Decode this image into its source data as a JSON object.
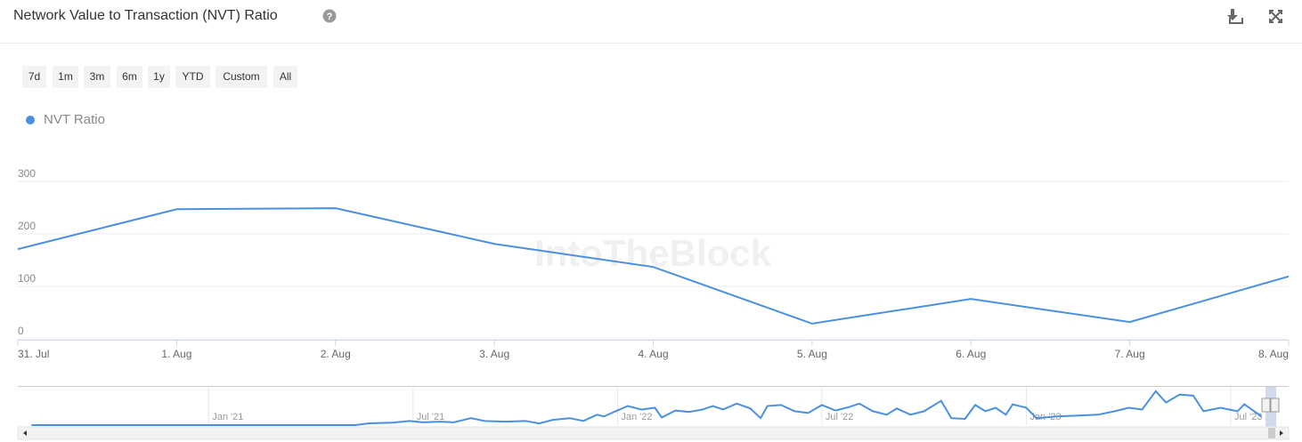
{
  "header": {
    "title": "Network Value to Transaction (NVT) Ratio"
  },
  "range_buttons": [
    "7d",
    "1m",
    "3m",
    "6m",
    "1y",
    "YTD",
    "Custom",
    "All"
  ],
  "watermark": "IntoTheBlock",
  "chart_data": [
    {
      "type": "line",
      "categories": [
        "31. Jul",
        "1. Aug",
        "2. Aug",
        "3. Aug",
        "4. Aug",
        "5. Aug",
        "6. Aug",
        "7. Aug",
        "8. Aug"
      ],
      "series": [
        {
          "name": "NVT Ratio",
          "color": "#4a90e2",
          "values": [
            171,
            247,
            249,
            181,
            137,
            29,
            76,
            32,
            119
          ]
        }
      ],
      "ylim": [
        0,
        300
      ],
      "yticks": [
        0,
        100,
        200,
        300
      ],
      "grid": true
    },
    {
      "type": "line",
      "x": [
        -5.2,
        4.3,
        4.7,
        5.4,
        5.9,
        6.3,
        6.8,
        7.2,
        7.7,
        8.1,
        8.7,
        9.3,
        9.7,
        10.1,
        10.6,
        11,
        11.4,
        11.6,
        11.9,
        12.3,
        12.7,
        13.1,
        13.3,
        13.7,
        14.1,
        14.5,
        14.8,
        15.1,
        15.5,
        15.9,
        16.2,
        16.4,
        16.8,
        17.2,
        17.6,
        18,
        18.4,
        18.8,
        19.1,
        19.5,
        19.9,
        20.2,
        20.6,
        21,
        21.5,
        21.8,
        22.2,
        22.5,
        22.8,
        23.1,
        23.4,
        23.6,
        24,
        24.3,
        24.9,
        25.6,
        26.1,
        26.6,
        27,
        27.4,
        27.8,
        28.1,
        28.5,
        28.9,
        29.2,
        29.7,
        30.2,
        30.4,
        30.9
      ],
      "series": [
        {
          "color": "#4a90e2",
          "values": [
            0,
            0,
            5,
            7,
            12,
            8,
            10,
            8,
            20,
            12,
            10,
            12,
            5,
            15,
            20,
            12,
            30,
            25,
            38,
            55,
            45,
            50,
            22,
            42,
            38,
            45,
            55,
            45,
            62,
            48,
            20,
            55,
            58,
            40,
            35,
            58,
            42,
            52,
            62,
            40,
            30,
            48,
            30,
            40,
            70,
            20,
            18,
            58,
            40,
            50,
            30,
            60,
            50,
            20,
            25,
            28,
            30,
            40,
            50,
            45,
            98,
            65,
            88,
            85,
            40,
            50,
            40,
            60,
            25
          ]
        }
      ],
      "xlim": [
        -5.6,
        31.7
      ],
      "xticks": [
        {
          "value": 0,
          "label": "Jan '21"
        },
        {
          "value": 6,
          "label": "Jul '21"
        },
        {
          "value": 12,
          "label": "Jan '22"
        },
        {
          "value": 18,
          "label": "Jul '22"
        },
        {
          "value": 24,
          "label": "Jan '23"
        },
        {
          "value": 30,
          "label": "Jul '23"
        }
      ],
      "ylim": [
        0,
        100
      ],
      "grid": true
    }
  ]
}
